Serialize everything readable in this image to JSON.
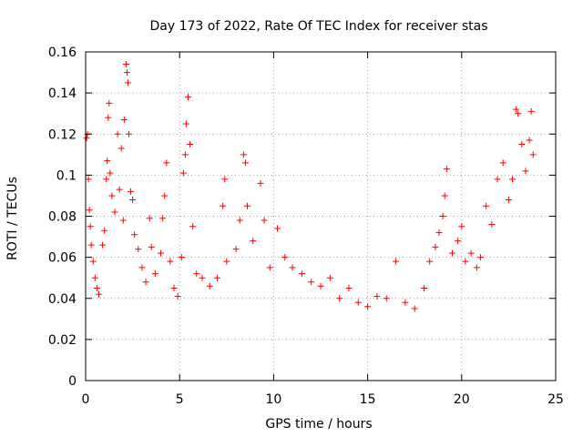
{
  "chart_data": {
    "type": "scatter",
    "title": "Day 173 of 2022, Rate Of TEC Index for receiver stas",
    "xlabel": "GPS time / hours",
    "ylabel": "ROTI / TECUs",
    "xlim": [
      0,
      25
    ],
    "ylim": [
      0,
      0.16
    ],
    "xticks": [
      0,
      5,
      10,
      15,
      20,
      25
    ],
    "xtick_labels": [
      "0",
      "5",
      "10",
      "15",
      "20",
      "25"
    ],
    "yticks": [
      0,
      0.02,
      0.04,
      0.06,
      0.08,
      0.1,
      0.12,
      0.14,
      0.16
    ],
    "ytick_labels": [
      "0",
      "0.02",
      "0.04",
      "0.06",
      "0.08",
      "0.1",
      "0.12",
      "0.14",
      "0.16"
    ],
    "grid": true,
    "marker": "+",
    "color": "#ff0000",
    "series": [
      {
        "points": [
          [
            0.05,
            0.118
          ],
          [
            0.1,
            0.12
          ],
          [
            0.15,
            0.098
          ],
          [
            0.2,
            0.083
          ],
          [
            0.25,
            0.075
          ],
          [
            0.3,
            0.066
          ],
          [
            0.4,
            0.058
          ],
          [
            0.5,
            0.05
          ],
          [
            0.6,
            0.045
          ],
          [
            0.7,
            0.042
          ],
          [
            0.9,
            0.066
          ],
          [
            1.0,
            0.073
          ],
          [
            1.1,
            0.098
          ],
          [
            1.15,
            0.107
          ],
          [
            1.2,
            0.128
          ],
          [
            1.25,
            0.135
          ],
          [
            1.3,
            0.101
          ],
          [
            1.4,
            0.09
          ],
          [
            1.55,
            0.082
          ],
          [
            1.7,
            0.12
          ],
          [
            1.8,
            0.093
          ],
          [
            1.9,
            0.113
          ],
          [
            2.0,
            0.078
          ],
          [
            2.05,
            0.127
          ],
          [
            2.15,
            0.154
          ],
          [
            2.2,
            0.15
          ],
          [
            2.25,
            0.145
          ],
          [
            2.3,
            0.12
          ],
          [
            2.4,
            0.092
          ],
          [
            2.5,
            0.088
          ],
          [
            2.6,
            0.071
          ],
          [
            2.8,
            0.064
          ],
          [
            3.0,
            0.055
          ],
          [
            3.2,
            0.048
          ],
          [
            3.4,
            0.079
          ],
          [
            3.5,
            0.065
          ],
          [
            3.7,
            0.052
          ],
          [
            4.0,
            0.062
          ],
          [
            4.1,
            0.079
          ],
          [
            4.2,
            0.09
          ],
          [
            4.3,
            0.106
          ],
          [
            4.5,
            0.058
          ],
          [
            4.7,
            0.045
          ],
          [
            4.9,
            0.041
          ],
          [
            5.1,
            0.06
          ],
          [
            5.2,
            0.101
          ],
          [
            5.3,
            0.11
          ],
          [
            5.35,
            0.125
          ],
          [
            5.45,
            0.138
          ],
          [
            5.55,
            0.115
          ],
          [
            5.7,
            0.075
          ],
          [
            5.9,
            0.052
          ],
          [
            6.2,
            0.05
          ],
          [
            6.6,
            0.046
          ],
          [
            7.0,
            0.05
          ],
          [
            7.3,
            0.085
          ],
          [
            7.4,
            0.098
          ],
          [
            7.5,
            0.058
          ],
          [
            8.0,
            0.064
          ],
          [
            8.2,
            0.078
          ],
          [
            8.4,
            0.11
          ],
          [
            8.5,
            0.106
          ],
          [
            8.6,
            0.085
          ],
          [
            8.9,
            0.068
          ],
          [
            9.3,
            0.096
          ],
          [
            9.5,
            0.078
          ],
          [
            9.8,
            0.055
          ],
          [
            10.2,
            0.074
          ],
          [
            10.6,
            0.06
          ],
          [
            11.0,
            0.055
          ],
          [
            11.5,
            0.052
          ],
          [
            12.0,
            0.048
          ],
          [
            12.5,
            0.046
          ],
          [
            13.0,
            0.05
          ],
          [
            13.5,
            0.04
          ],
          [
            14.0,
            0.045
          ],
          [
            14.5,
            0.038
          ],
          [
            15.0,
            0.036
          ],
          [
            15.5,
            0.041
          ],
          [
            16.0,
            0.04
          ],
          [
            16.5,
            0.058
          ],
          [
            17.0,
            0.038
          ],
          [
            17.5,
            0.035
          ],
          [
            18.0,
            0.045
          ],
          [
            18.3,
            0.058
          ],
          [
            18.6,
            0.065
          ],
          [
            18.8,
            0.072
          ],
          [
            19.0,
            0.08
          ],
          [
            19.1,
            0.09
          ],
          [
            19.2,
            0.103
          ],
          [
            19.5,
            0.062
          ],
          [
            19.8,
            0.068
          ],
          [
            20.0,
            0.075
          ],
          [
            20.2,
            0.058
          ],
          [
            20.5,
            0.062
          ],
          [
            20.8,
            0.055
          ],
          [
            21.0,
            0.06
          ],
          [
            21.3,
            0.085
          ],
          [
            21.6,
            0.076
          ],
          [
            21.9,
            0.098
          ],
          [
            22.2,
            0.106
          ],
          [
            22.5,
            0.088
          ],
          [
            22.7,
            0.098
          ],
          [
            22.9,
            0.132
          ],
          [
            23.0,
            0.13
          ],
          [
            23.2,
            0.115
          ],
          [
            23.4,
            0.102
          ],
          [
            23.6,
            0.117
          ],
          [
            23.7,
            0.131
          ],
          [
            23.8,
            0.11
          ]
        ]
      }
    ]
  }
}
